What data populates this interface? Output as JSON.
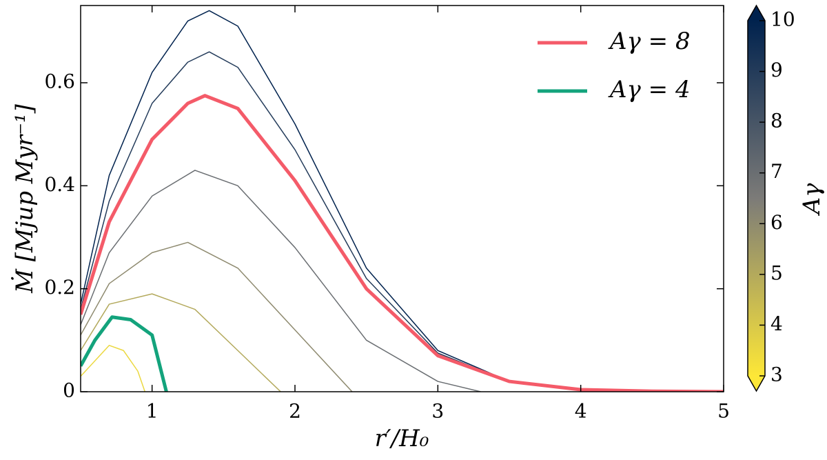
{
  "chart_data": {
    "type": "line",
    "xlabel": "r′/H₀",
    "ylabel": "Ṁ [Mjup Myr⁻¹]",
    "xlim": [
      0.5,
      5
    ],
    "ylim": [
      0,
      0.75
    ],
    "xticks": [
      1,
      2,
      3,
      4,
      5
    ],
    "yticks": [
      0,
      0.2,
      0.4,
      0.6
    ],
    "legend_position": "upper right",
    "series": [
      {
        "name": "Aγ = 8",
        "color": "#f45b69",
        "x": [
          0.5,
          0.7,
          1.0,
          1.25,
          1.37,
          1.6,
          2.0,
          2.5,
          3.0,
          3.5,
          4.0,
          4.5,
          5.0
        ],
        "values": [
          0.15,
          0.33,
          0.49,
          0.56,
          0.575,
          0.55,
          0.41,
          0.2,
          0.07,
          0.02,
          0.004,
          0.001,
          0
        ]
      },
      {
        "name": "Aγ = 4",
        "color": "#13a37c",
        "x": [
          0.5,
          0.6,
          0.72,
          0.85,
          1.0,
          1.1
        ],
        "values": [
          0.05,
          0.1,
          0.145,
          0.14,
          0.11,
          0
        ]
      }
    ],
    "background_curves": [
      {
        "A": 3.5,
        "x": [
          0.5,
          0.7,
          0.8,
          0.9,
          0.95
        ],
        "values": [
          0.03,
          0.09,
          0.08,
          0.04,
          0
        ]
      },
      {
        "A": 5,
        "x": [
          0.5,
          0.7,
          1.0,
          1.3,
          1.6,
          1.9
        ],
        "values": [
          0.08,
          0.17,
          0.19,
          0.16,
          0.08,
          0
        ]
      },
      {
        "A": 6,
        "x": [
          0.5,
          0.7,
          1.0,
          1.25,
          1.6,
          2.0,
          2.4
        ],
        "values": [
          0.11,
          0.21,
          0.27,
          0.29,
          0.24,
          0.12,
          0
        ]
      },
      {
        "A": 7,
        "x": [
          0.5,
          0.7,
          1.0,
          1.3,
          1.6,
          2.0,
          2.5,
          3.0,
          3.3
        ],
        "values": [
          0.13,
          0.27,
          0.38,
          0.43,
          0.4,
          0.28,
          0.1,
          0.02,
          0
        ]
      },
      {
        "A": 9,
        "x": [
          0.5,
          0.7,
          1.0,
          1.25,
          1.4,
          1.6,
          2.0,
          2.5,
          3.0,
          3.5,
          4.0,
          4.5,
          5.0
        ],
        "values": [
          0.16,
          0.37,
          0.56,
          0.64,
          0.66,
          0.63,
          0.47,
          0.22,
          0.075,
          0.02,
          0.005,
          0.001,
          0
        ]
      },
      {
        "A": 10,
        "x": [
          0.5,
          0.7,
          1.0,
          1.25,
          1.4,
          1.6,
          2.0,
          2.5,
          3.0,
          3.5,
          4.0,
          4.5,
          5.0
        ],
        "values": [
          0.17,
          0.42,
          0.62,
          0.72,
          0.74,
          0.71,
          0.52,
          0.24,
          0.08,
          0.02,
          0.005,
          0.001,
          0
        ]
      }
    ],
    "colorbar": {
      "label": "Aγ",
      "lim": [
        3,
        10
      ],
      "ticks": [
        3,
        4,
        5,
        6,
        7,
        8,
        9,
        10
      ],
      "colors": [
        "#fde737",
        "#7c7b78",
        "#00224e"
      ]
    }
  }
}
